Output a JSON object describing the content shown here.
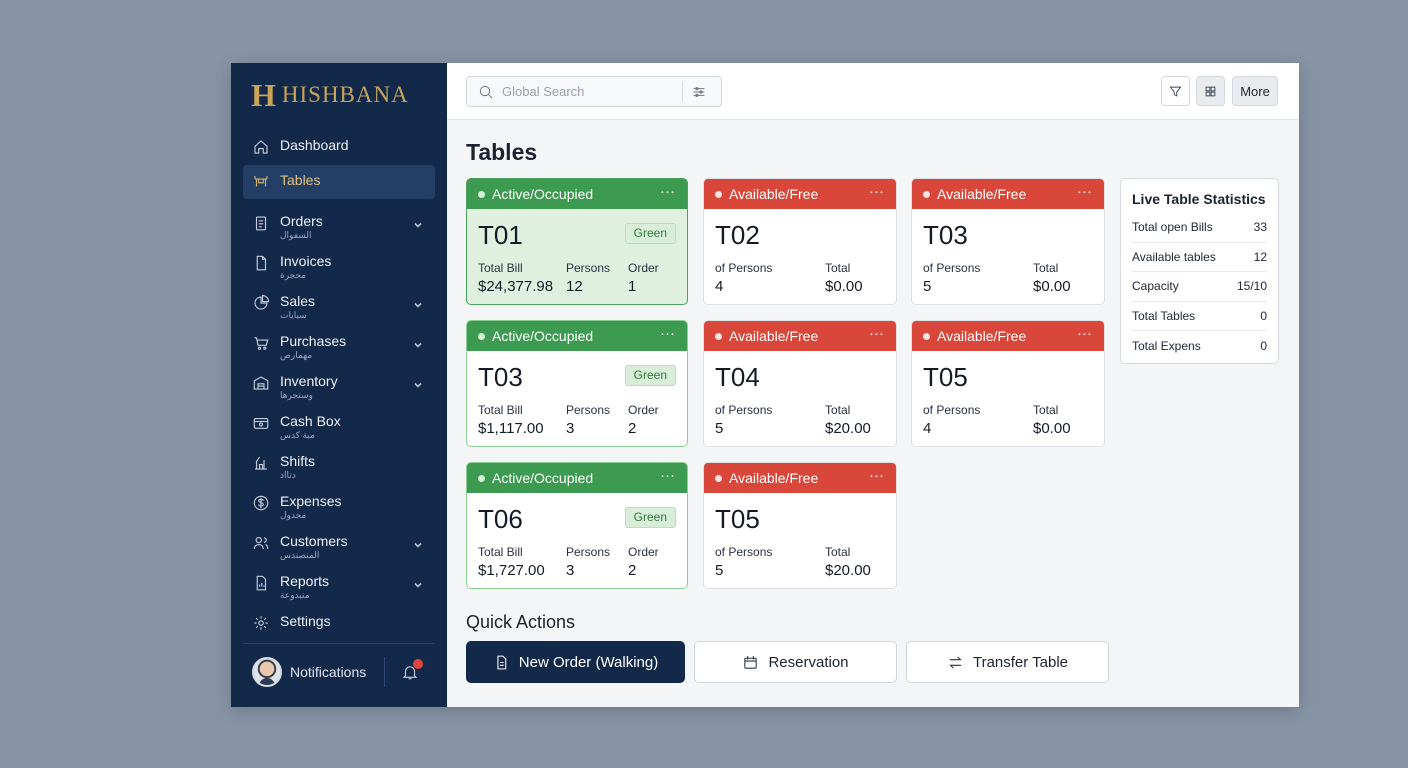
{
  "brand": {
    "logo_letter": "H",
    "name": "HISHBANA"
  },
  "sidebar": {
    "items": [
      {
        "label": "Dashboard",
        "sub": "",
        "icon": "home-icon",
        "has_chevron": false
      },
      {
        "label": "Tables",
        "sub": "",
        "icon": "tables-icon",
        "has_chevron": false,
        "active": true
      },
      {
        "label": "Orders",
        "sub": "السفوال",
        "icon": "orders-icon",
        "has_chevron": true
      },
      {
        "label": "Invoices",
        "sub": "محجرة",
        "icon": "invoice-icon",
        "has_chevron": false
      },
      {
        "label": "Sales",
        "sub": "سبايات",
        "icon": "pie-chart-icon",
        "has_chevron": true
      },
      {
        "label": "Purchases",
        "sub": "مهمارص",
        "icon": "cart-icon",
        "has_chevron": true
      },
      {
        "label": "Inventory",
        "sub": "وستجرها",
        "icon": "warehouse-icon",
        "has_chevron": true
      },
      {
        "label": "Cash Box",
        "sub": "مبة كدس",
        "icon": "cash-box-icon",
        "has_chevron": false
      },
      {
        "label": "Shifts",
        "sub": "دتااد",
        "icon": "shifts-icon",
        "has_chevron": false
      },
      {
        "label": "Expenses",
        "sub": "محدول",
        "icon": "dollar-icon",
        "has_chevron": false
      },
      {
        "label": "Customers",
        "sub": "المنصندس",
        "icon": "users-icon",
        "has_chevron": true
      },
      {
        "label": "Reports",
        "sub": "منبدوعة",
        "icon": "report-icon",
        "has_chevron": true
      },
      {
        "label": "Settings",
        "sub": "",
        "icon": "gear-icon",
        "has_chevron": false
      }
    ],
    "footer": {
      "label": "Notifications",
      "has_unread": true
    }
  },
  "topbar": {
    "search_placeholder": "Global Search",
    "more_label": "More"
  },
  "page": {
    "title": "Tables"
  },
  "tables": [
    {
      "id": "T01",
      "status": "Active/Occupied",
      "type": "occupied",
      "badge": "Green",
      "selected": true,
      "stats": [
        {
          "label": "Total Bill",
          "value": "$24,377.98"
        },
        {
          "label": "Persons",
          "value": "12"
        },
        {
          "label": "Order",
          "value": "1"
        }
      ]
    },
    {
      "id": "T02",
      "status": "Available/Free",
      "type": "free",
      "badge": "",
      "stats": [
        {
          "label": "of Persons",
          "value": "4"
        },
        {
          "label": "Total",
          "value": "$0.00"
        }
      ]
    },
    {
      "id": "T03",
      "status": "Available/Free",
      "type": "free",
      "badge": "",
      "stats": [
        {
          "label": "of Persons",
          "value": "5"
        },
        {
          "label": "Total",
          "value": "$0.00"
        }
      ]
    },
    {
      "id": "T03",
      "status": "Active/Occupied",
      "type": "occupied",
      "badge": "Green",
      "stats": [
        {
          "label": "Total Bill",
          "value": "$1,117.00"
        },
        {
          "label": "Persons",
          "value": "3"
        },
        {
          "label": "Order",
          "value": "2"
        }
      ]
    },
    {
      "id": "T04",
      "status": "Available/Free",
      "type": "free",
      "badge": "",
      "stats": [
        {
          "label": "of Persons",
          "value": "5"
        },
        {
          "label": "Total",
          "value": "$20.00"
        }
      ]
    },
    {
      "id": "T05",
      "status": "Available/Free",
      "type": "free",
      "badge": "",
      "stats": [
        {
          "label": "of Persons",
          "value": "4"
        },
        {
          "label": "Total",
          "value": "$0.00"
        }
      ]
    },
    {
      "id": "T06",
      "status": "Active/Occupied",
      "type": "occupied",
      "badge": "Green",
      "stats": [
        {
          "label": "Total Bill",
          "value": "$1,727.00"
        },
        {
          "label": "Persons",
          "value": "3"
        },
        {
          "label": "Order",
          "value": "2"
        }
      ]
    },
    {
      "id": "T05",
      "status": "Available/Free",
      "type": "free",
      "badge": "",
      "stats": [
        {
          "label": "of Persons",
          "value": "5"
        },
        {
          "label": "Total",
          "value": "$20.00"
        }
      ]
    }
  ],
  "live_stats": {
    "title": "Live Table Statistics",
    "rows": [
      {
        "label": "Total open Bills",
        "value": "33"
      },
      {
        "label": "Available tables",
        "value": "12"
      },
      {
        "label": "Capacity",
        "value": "15/10"
      },
      {
        "label": "Total Tables",
        "value": "0"
      },
      {
        "label": "Total Expens",
        "value": "0"
      }
    ]
  },
  "quick_actions": {
    "title": "Quick Actions",
    "new_order": "New Order (Walking)",
    "reservation": "Reservation",
    "transfer": "Transfer Table"
  },
  "colors": {
    "sidebar_bg": "#13294a",
    "accent_gold": "#c8a45b",
    "occupied_green": "#3d9b51",
    "free_red": "#d8473a"
  }
}
